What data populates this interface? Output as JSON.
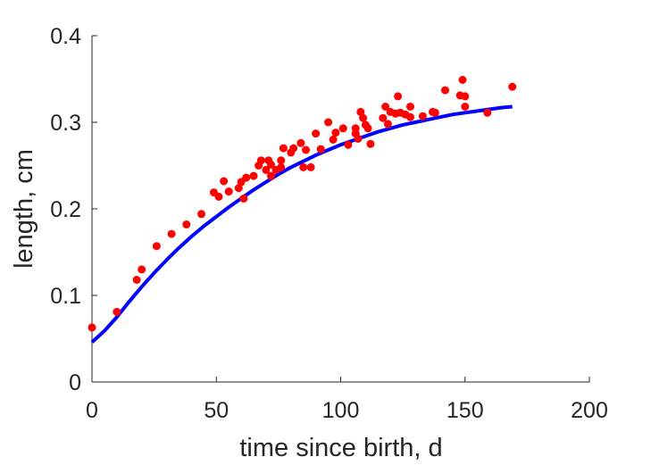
{
  "chart_data": {
    "type": "scatter",
    "xlabel": "time since birth, d",
    "ylabel": "length, cm",
    "xlim": [
      0,
      200
    ],
    "ylim": [
      0,
      0.4
    ],
    "xticks": [
      0,
      50,
      100,
      150,
      200
    ],
    "yticks": [
      0,
      0.1,
      0.2,
      0.3,
      0.4
    ],
    "xtick_labels": [
      "0",
      "50",
      "100",
      "150",
      "200"
    ],
    "ytick_labels": [
      "0",
      "0.1",
      "0.2",
      "0.3",
      "0.4"
    ],
    "grid": false,
    "colors": {
      "points": "#ff0000",
      "fit": "#0000ff",
      "axis": "#262626"
    },
    "series": [
      {
        "type": "scatter",
        "points": [
          [
            0,
            0.063
          ],
          [
            10,
            0.081
          ],
          [
            18,
            0.118
          ],
          [
            20,
            0.13
          ],
          [
            26,
            0.157
          ],
          [
            32,
            0.171
          ],
          [
            38,
            0.182
          ],
          [
            44,
            0.194
          ],
          [
            49,
            0.219
          ],
          [
            51,
            0.214
          ],
          [
            53,
            0.232
          ],
          [
            55,
            0.22
          ],
          [
            59,
            0.224
          ],
          [
            60,
            0.231
          ],
          [
            61,
            0.212
          ],
          [
            62,
            0.236
          ],
          [
            65,
            0.238
          ],
          [
            67,
            0.25
          ],
          [
            68,
            0.256
          ],
          [
            70,
            0.245
          ],
          [
            71,
            0.256
          ],
          [
            72,
            0.251
          ],
          [
            72,
            0.238
          ],
          [
            74,
            0.245
          ],
          [
            76,
            0.248
          ],
          [
            76,
            0.256
          ],
          [
            77,
            0.27
          ],
          [
            80,
            0.265
          ],
          [
            81,
            0.27
          ],
          [
            84,
            0.276
          ],
          [
            85,
            0.248
          ],
          [
            86,
            0.268
          ],
          [
            88,
            0.248
          ],
          [
            90,
            0.287
          ],
          [
            92,
            0.269
          ],
          [
            95,
            0.3
          ],
          [
            97,
            0.28
          ],
          [
            98,
            0.288
          ],
          [
            101,
            0.293
          ],
          [
            103,
            0.274
          ],
          [
            106,
            0.293
          ],
          [
            106,
            0.287
          ],
          [
            107,
            0.281
          ],
          [
            108,
            0.312
          ],
          [
            109,
            0.305
          ],
          [
            110,
            0.297
          ],
          [
            111,
            0.293
          ],
          [
            112,
            0.275
          ],
          [
            117,
            0.305
          ],
          [
            118,
            0.318
          ],
          [
            119,
            0.298
          ],
          [
            120,
            0.312
          ],
          [
            122,
            0.31
          ],
          [
            123,
            0.33
          ],
          [
            124,
            0.311
          ],
          [
            126,
            0.309
          ],
          [
            128,
            0.318
          ],
          [
            128,
            0.306
          ],
          [
            133,
            0.307
          ],
          [
            137,
            0.312
          ],
          [
            138,
            0.311
          ],
          [
            142,
            0.337
          ],
          [
            148,
            0.331
          ],
          [
            149,
            0.349
          ],
          [
            150,
            0.33
          ],
          [
            150,
            0.318
          ],
          [
            159,
            0.311
          ],
          [
            169,
            0.341
          ]
        ]
      },
      {
        "type": "line",
        "x": [
          0,
          5,
          10,
          15,
          20,
          25,
          30,
          35,
          40,
          45,
          50,
          55,
          60,
          65,
          70,
          75,
          80,
          85,
          90,
          95,
          100,
          105,
          110,
          115,
          120,
          125,
          130,
          135,
          140,
          145,
          150,
          155,
          160,
          165,
          169
        ],
        "y": [
          0.046,
          0.059,
          0.075,
          0.093,
          0.11,
          0.126,
          0.141,
          0.155,
          0.168,
          0.18,
          0.191,
          0.202,
          0.212,
          0.222,
          0.231,
          0.24,
          0.248,
          0.255,
          0.262,
          0.268,
          0.274,
          0.279,
          0.284,
          0.289,
          0.293,
          0.297,
          0.3,
          0.303,
          0.306,
          0.309,
          0.311,
          0.313,
          0.315,
          0.317,
          0.318
        ]
      }
    ]
  }
}
